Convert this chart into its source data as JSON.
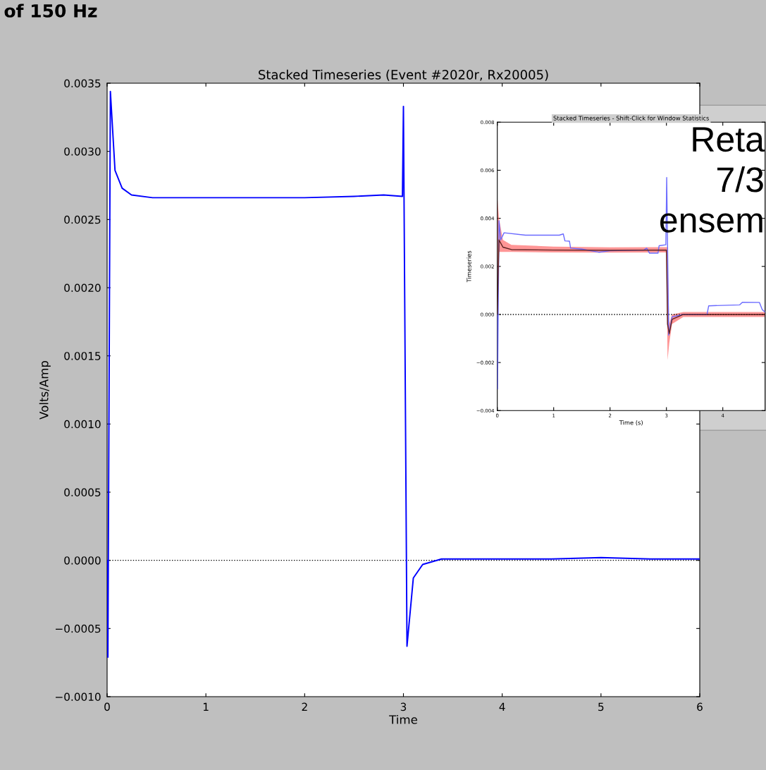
{
  "chart_data": [
    {
      "type": "line",
      "title": "Stacked Timeseries (Event #2020r, Rx20005)",
      "xlabel": "Time",
      "ylabel": "Volts/Amp",
      "annotations": [
        "of 150 Hz"
      ],
      "xlim": [
        0,
        6
      ],
      "xticks": [
        0,
        1,
        2,
        3,
        4,
        5,
        6
      ],
      "ylim": [
        -0.001,
        0.0035
      ],
      "yticks": [
        {
          "value": -0.001,
          "label": "−0.0010"
        },
        {
          "value": -0.0005,
          "label": "−0.0005"
        },
        {
          "value": 0,
          "label": "0.0000"
        },
        {
          "value": 0.0005,
          "label": "0.0005"
        },
        {
          "value": 0.001,
          "label": "0.0010"
        },
        {
          "value": 0.0015,
          "label": "0.0015"
        },
        {
          "value": 0.002,
          "label": "0.0020"
        },
        {
          "value": 0.0025,
          "label": "0.0025"
        },
        {
          "value": 0.003,
          "label": "0.0030"
        },
        {
          "value": 0.0035,
          "label": "0.0035"
        }
      ],
      "grid": false,
      "legend": false,
      "ref_lines": [
        {
          "axis": "y",
          "value": 0,
          "color": "#000000",
          "line_style": "dotted"
        }
      ],
      "series": [
        {
          "color": "#0000ff",
          "x": [
            0,
            0.008,
            0.033,
            0.08,
            0.152,
            0.247,
            0.46,
            0.6,
            1.0,
            1.5,
            2.0,
            2.5,
            2.8,
            2.99,
            3.0,
            3.036,
            3.1,
            3.195,
            3.386,
            4.0,
            4.5,
            5.0,
            5.5,
            6.0
          ],
          "values": [
            0.0,
            -0.00071,
            0.00344,
            0.00286,
            0.00273,
            0.00268,
            0.00266,
            0.00266,
            0.00266,
            0.00266,
            0.00266,
            0.00267,
            0.00268,
            0.00267,
            0.00333,
            -0.00063,
            -0.00013,
            -3e-05,
            1e-05,
            1e-05,
            1e-05,
            2e-05,
            1e-05,
            1e-05
          ]
        }
      ]
    },
    {
      "type": "line",
      "title": "Stacked Timeseries - Shift-Click for Window Statistics",
      "xlabel": "Time (s)",
      "ylabel": "Timeseries",
      "annotations": [
        "Reta",
        "7/3",
        "ensem"
      ],
      "xlim": [
        0,
        4.75
      ],
      "xticks": [
        0,
        1,
        2,
        3,
        4
      ],
      "ylim": [
        -0.004,
        0.008
      ],
      "yticks": [
        {
          "value": -0.004,
          "label": "−0.004"
        },
        {
          "value": -0.002,
          "label": "−0.002"
        },
        {
          "value": 0,
          "label": "0.000"
        },
        {
          "value": 0.002,
          "label": "0.002"
        },
        {
          "value": 0.004,
          "label": "0.004"
        },
        {
          "value": 0.006,
          "label": "0.006"
        },
        {
          "value": 0.008,
          "label": "0.008"
        }
      ],
      "grid": false,
      "legend": false,
      "ref_lines": [
        {
          "axis": "y",
          "value": 0,
          "color": "#000000",
          "line_style": "dotted"
        }
      ],
      "series": [
        {
          "color": "#6a6aff",
          "x": [
            0,
            0.005,
            0.03,
            0.06,
            0.12,
            0.5,
            1.1,
            1.17,
            1.2,
            1.28,
            1.3,
            1.5,
            1.8,
            2.0,
            2.6,
            2.65,
            2.7,
            2.85,
            2.87,
            2.99,
            3.005,
            3.04,
            3.1,
            3.3,
            3.72,
            3.75,
            4.3,
            4.35,
            4.65,
            4.7,
            4.75
          ],
          "values": [
            0.0,
            -0.0031,
            0.0039,
            0.0031,
            0.0034,
            0.0033,
            0.0033,
            0.00335,
            0.00306,
            0.00305,
            0.00276,
            0.00272,
            0.00259,
            0.00265,
            0.00268,
            0.00276,
            0.00255,
            0.00255,
            0.00286,
            0.0029,
            0.0057,
            -0.00086,
            -0.0001,
            0.0,
            0.0,
            0.00036,
            0.0004,
            0.00051,
            0.0005,
            0.0002,
            0.0001
          ]
        },
        {
          "color": "#5a2020",
          "x": [
            0,
            0.03,
            0.1,
            0.25,
            1,
            2,
            3.0,
            3.02,
            3.05,
            3.1,
            3.3,
            4,
            4.75
          ],
          "values": [
            0.0,
            0.0031,
            0.0028,
            0.0027,
            0.00268,
            0.00267,
            0.00268,
            -0.0004,
            -0.0008,
            -0.0002,
            0.0,
            0.0,
            0.0
          ],
          "lower": [
            -0.0011,
            0.0026,
            0.0026,
            0.0026,
            0.00258,
            0.00257,
            0.00258,
            -0.0019,
            -0.0012,
            -0.0004,
            -0.0001,
            -0.0001,
            -0.0001
          ],
          "upper": [
            0.0049,
            0.004,
            0.0031,
            0.0029,
            0.00282,
            0.00279,
            0.0028,
            0.0028,
            -0.0004,
            0.0,
            0.0001,
            0.0001,
            0.0001
          ]
        }
      ]
    }
  ]
}
